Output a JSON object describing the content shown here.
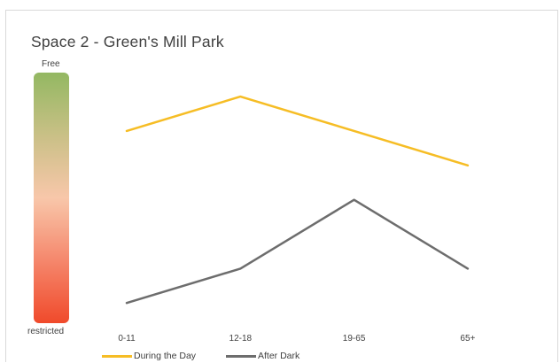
{
  "chart_data": {
    "type": "line",
    "title": "Space 2 - Green's Mill Park",
    "categories": [
      "0-11",
      "12-18",
      "19-65",
      "65+"
    ],
    "series": [
      {
        "name": "During the Day",
        "color": "#f6bd25",
        "values": [
          5.2,
          6.2,
          5.2,
          4.2
        ]
      },
      {
        "name": "After Dark",
        "color": "#6d6d6d",
        "values": [
          0.2,
          1.2,
          3.2,
          1.2
        ]
      }
    ],
    "ylim": [
      0,
      7
    ],
    "scale": {
      "top_label": "Free",
      "bottom_label": "restricted",
      "colors": [
        "#93b862",
        "#c9c086",
        "#f8c7aa",
        "#f5876c",
        "#f04a2b"
      ]
    },
    "grid": false,
    "legend": "bottom"
  }
}
